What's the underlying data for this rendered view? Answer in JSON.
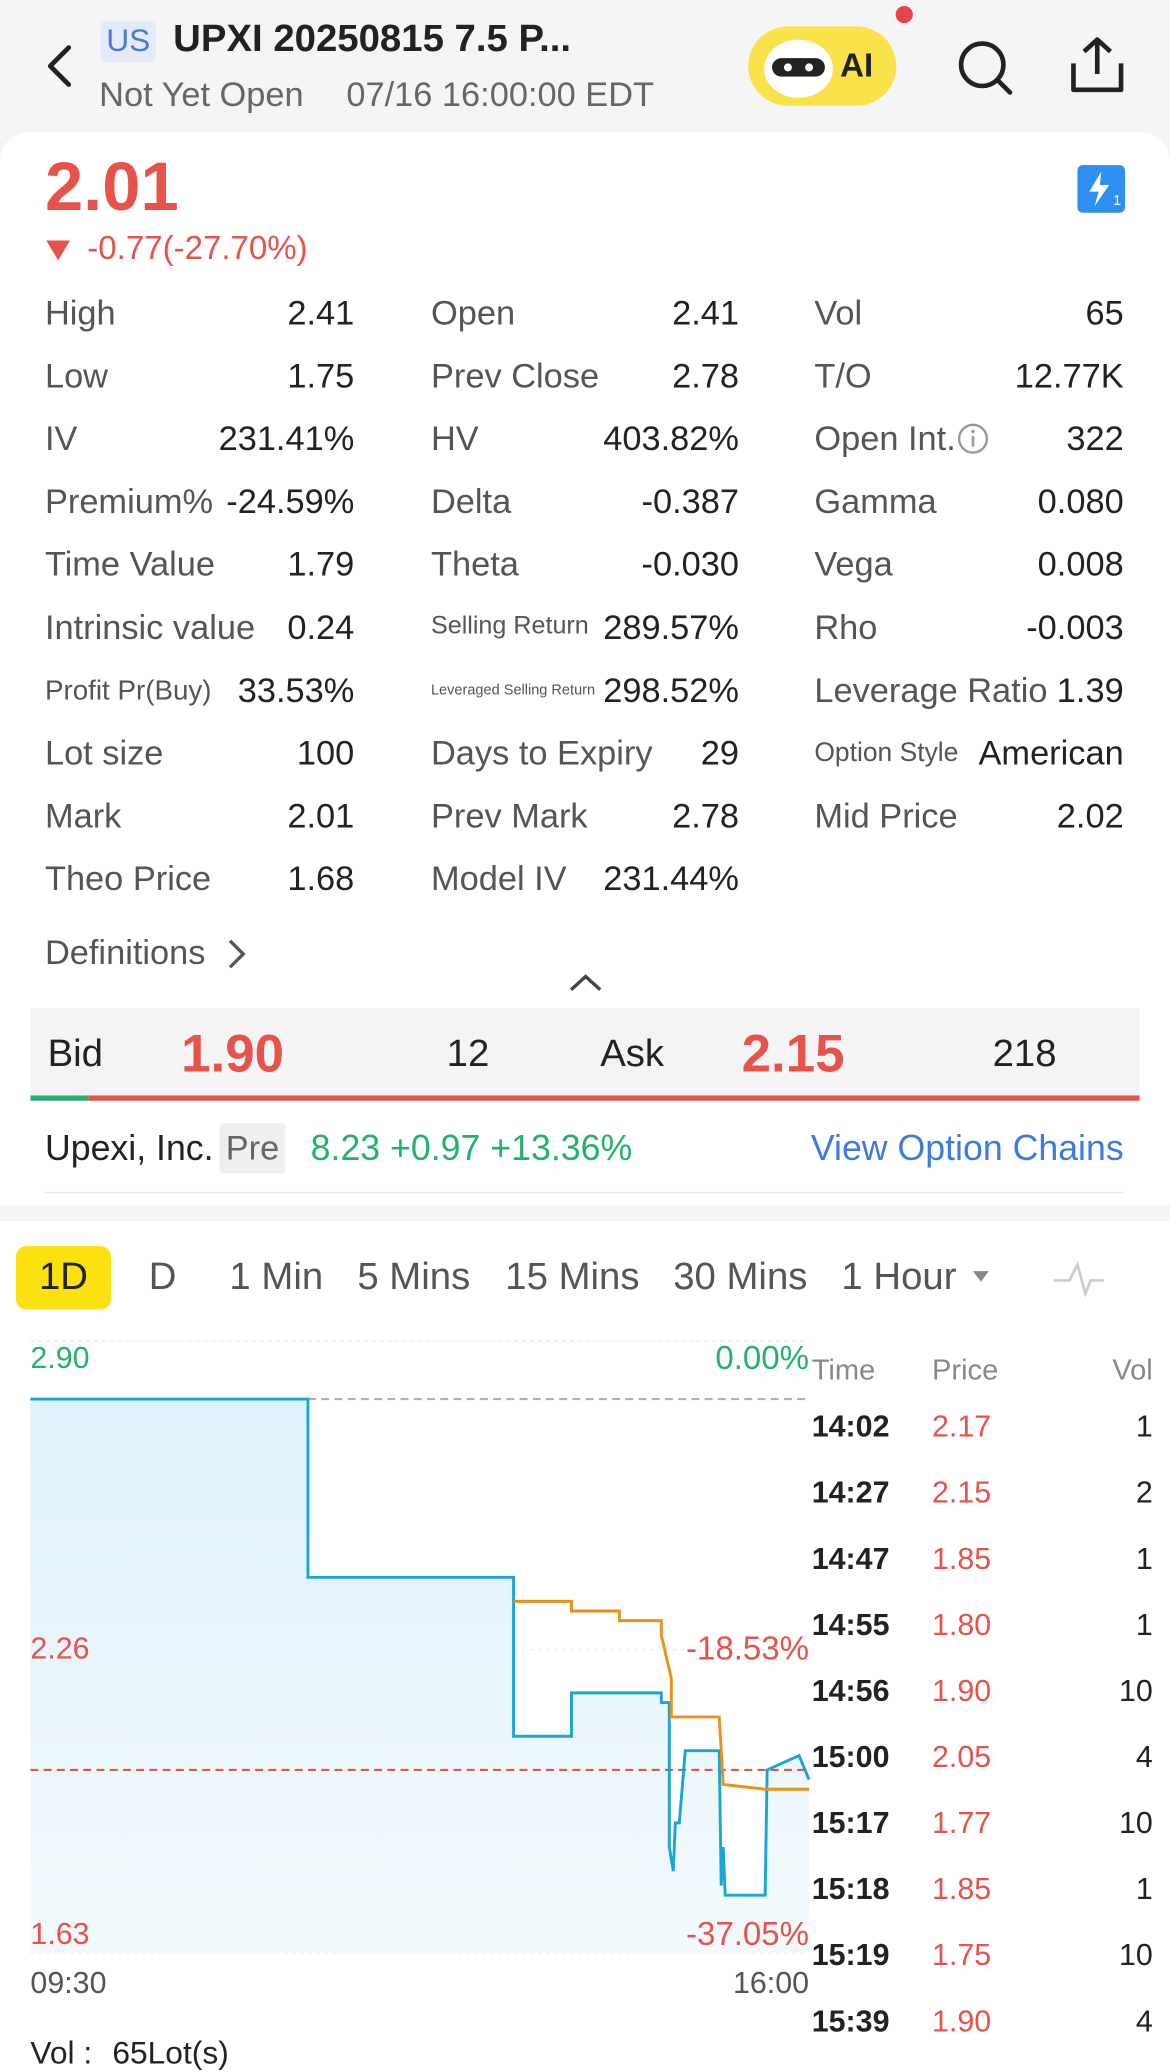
{
  "header": {
    "market": "US",
    "title": "UPXI 20250815 7.5 P...",
    "status": "Not Yet Open",
    "time": "07/16 16:00:00 EDT",
    "ai": "AI"
  },
  "quote": {
    "price": "2.01",
    "change": "-0.77(-27.70%)"
  },
  "stats": [
    [
      [
        "High",
        "2.41"
      ],
      [
        "Open",
        "2.41"
      ],
      [
        "Vol",
        "65"
      ]
    ],
    [
      [
        "Low",
        "1.75"
      ],
      [
        "Prev Close",
        "2.78"
      ],
      [
        "T/O",
        "12.77K"
      ]
    ],
    [
      [
        "IV",
        "231.41%"
      ],
      [
        "HV",
        "403.82%"
      ],
      [
        "Open Int.",
        "322"
      ]
    ],
    [
      [
        "Premium%",
        "-24.59%"
      ],
      [
        "Delta",
        "-0.387"
      ],
      [
        "Gamma",
        "0.080"
      ]
    ],
    [
      [
        "Time Value",
        "1.79"
      ],
      [
        "Theta",
        "-0.030"
      ],
      [
        "Vega",
        "0.008"
      ]
    ],
    [
      [
        "Intrinsic value",
        "0.24"
      ],
      [
        "Selling Return",
        "289.57%"
      ],
      [
        "Rho",
        "-0.003"
      ]
    ],
    [
      [
        "Profit Pr(Buy)",
        "33.53%"
      ],
      [
        "Leveraged Selling Return",
        "298.52%"
      ],
      [
        "Leverage Ratio",
        "1.39"
      ]
    ],
    [
      [
        "Lot size",
        "100"
      ],
      [
        "Days to Expiry",
        "29"
      ],
      [
        "Option Style",
        "American"
      ]
    ],
    [
      [
        "Mark",
        "2.01"
      ],
      [
        "Prev Mark",
        "2.78"
      ],
      [
        "Mid Price",
        "2.02"
      ]
    ],
    [
      [
        "Theo Price",
        "1.68"
      ],
      [
        "Model IV",
        "231.44%"
      ]
    ]
  ],
  "definitions": "Definitions",
  "bid_ask": {
    "bid_label": "Bid",
    "bid": "1.90",
    "bid_size": 12,
    "ask_label": "Ask",
    "ask": "2.15",
    "ask_size": 218
  },
  "underlying": {
    "name": "Upexi, Inc.",
    "session": "Pre",
    "quote": "8.23 +0.97 +13.36%",
    "link": "View Option Chains"
  },
  "tabs": [
    "1D",
    "D",
    "1 Min",
    "5 Mins",
    "15 Mins",
    "30 Mins",
    "1 Hour"
  ],
  "chart_data": {
    "type": "line",
    "xlim": [
      "09:30",
      "16:00"
    ],
    "ylim": [
      1.63,
      2.9
    ],
    "yticks": [
      {
        "value": 2.9,
        "label": "2.90"
      },
      {
        "value": 2.26,
        "label": "2.26"
      },
      {
        "value": 1.63,
        "label": "1.63"
      }
    ],
    "pct_labels": [
      "0.00%",
      "-18.53%",
      "-37.05%"
    ],
    "reference_lines": [
      {
        "value": 2.78,
        "color": "#b0b0b0"
      },
      {
        "value": 2.01,
        "color": "#e5534b"
      }
    ],
    "series": [
      {
        "color": "#1ba5d6",
        "x": [
          "09:30",
          "11:49",
          "11:49",
          "13:32",
          "13:32",
          "14:01",
          "14:01",
          "14:46",
          "14:46",
          "14:50",
          "14:50",
          "14:52",
          "14:53",
          "14:55",
          "14:58",
          "15:15",
          "15:16",
          "15:17",
          "15:18",
          "15:38",
          "15:39",
          "15:55",
          "16:00"
        ],
        "values": [
          2.78,
          2.78,
          2.41,
          2.41,
          2.08,
          2.08,
          2.17,
          2.17,
          2.15,
          2.15,
          1.85,
          1.8,
          1.9,
          1.9,
          2.05,
          2.05,
          1.77,
          1.85,
          1.75,
          1.75,
          2.01,
          2.04,
          1.99
        ]
      },
      {
        "color": "#e8921a",
        "x": [
          "13:32",
          "14:01",
          "14:01",
          "14:25",
          "14:25",
          "14:46",
          "14:46",
          "14:51",
          "14:51",
          "15:15",
          "15:17",
          "15:38",
          "16:00"
        ],
        "values": [
          2.36,
          2.36,
          2.34,
          2.34,
          2.32,
          2.32,
          2.29,
          2.2,
          2.12,
          2.12,
          1.98,
          1.97,
          1.97
        ]
      }
    ]
  },
  "trades": {
    "header": [
      "Time",
      "Price",
      "Vol"
    ],
    "rows": [
      [
        "14:02",
        "2.17",
        "1"
      ],
      [
        "14:27",
        "2.15",
        "2"
      ],
      [
        "14:47",
        "1.85",
        "1"
      ],
      [
        "14:55",
        "1.80",
        "1"
      ],
      [
        "14:56",
        "1.90",
        "10"
      ],
      [
        "15:00",
        "2.05",
        "4"
      ],
      [
        "15:17",
        "1.77",
        "10"
      ],
      [
        "15:18",
        "1.85",
        "1"
      ],
      [
        "15:19",
        "1.75",
        "10"
      ],
      [
        "15:39",
        "1.90",
        "4"
      ]
    ]
  },
  "footer": {
    "label": "Vol :",
    "value": "65Lot(s)"
  }
}
